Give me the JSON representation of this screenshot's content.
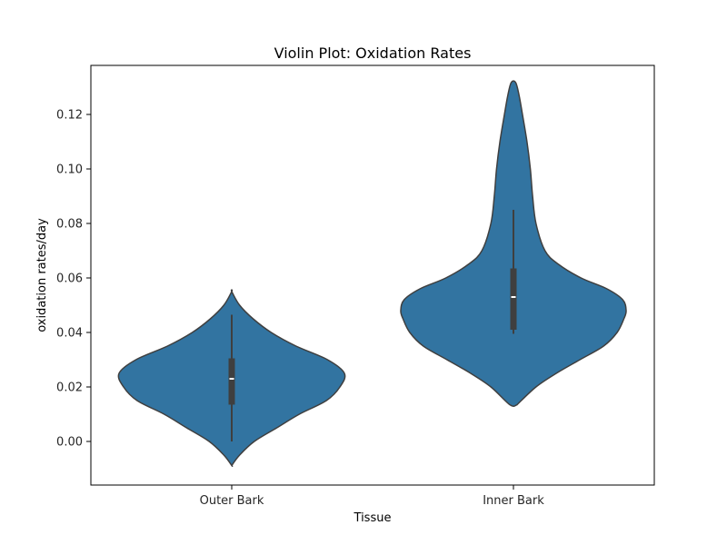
{
  "chart_data": {
    "type": "violin",
    "title": "Violin Plot: Oxidation Rates",
    "xlabel": "Tissue",
    "ylabel": "oxidation rates/day",
    "categories": [
      "Outer Bark",
      "Inner Bark"
    ],
    "ylim": [
      -0.016,
      0.138
    ],
    "yticks": [
      0.0,
      0.02,
      0.04,
      0.06,
      0.08,
      0.1,
      0.12
    ],
    "ytick_labels": [
      "0.00",
      "0.02",
      "0.04",
      "0.06",
      "0.08",
      "0.10",
      "0.12"
    ],
    "grid": false,
    "fill_color": "#3274a1",
    "edge_color": "#3f3f3f",
    "box_color": "#3f3f3f",
    "median_color": "#ffffff",
    "violins": [
      {
        "category": "Outer Bark",
        "min": 0.0,
        "q1": 0.0135,
        "median": 0.023,
        "q3": 0.0305,
        "max": 0.0465,
        "kde_range": [
          -0.0088,
          0.055
        ],
        "density_relative": [
          [
            -0.0088,
            0.0
          ],
          [
            -0.005,
            0.07
          ],
          [
            0.0,
            0.2
          ],
          [
            0.005,
            0.4
          ],
          [
            0.01,
            0.6
          ],
          [
            0.015,
            0.84
          ],
          [
            0.02,
            0.96
          ],
          [
            0.025,
            1.0
          ],
          [
            0.03,
            0.85
          ],
          [
            0.035,
            0.57
          ],
          [
            0.04,
            0.35
          ],
          [
            0.045,
            0.19
          ],
          [
            0.05,
            0.07
          ],
          [
            0.055,
            0.0
          ]
        ]
      },
      {
        "category": "Inner Bark",
        "min": 0.0395,
        "q1": 0.041,
        "median": 0.053,
        "q3": 0.0635,
        "max": 0.085,
        "kde_range": [
          0.0134,
          0.1317
        ],
        "density_relative": [
          [
            0.0134,
            0.03
          ],
          [
            0.02,
            0.2
          ],
          [
            0.025,
            0.38
          ],
          [
            0.03,
            0.59
          ],
          [
            0.035,
            0.8
          ],
          [
            0.04,
            0.92
          ],
          [
            0.045,
            0.98
          ],
          [
            0.048,
            1.0
          ],
          [
            0.052,
            0.97
          ],
          [
            0.056,
            0.83
          ],
          [
            0.06,
            0.6
          ],
          [
            0.065,
            0.4
          ],
          [
            0.07,
            0.28
          ],
          [
            0.08,
            0.2
          ],
          [
            0.09,
            0.17
          ],
          [
            0.1,
            0.15
          ],
          [
            0.11,
            0.12
          ],
          [
            0.12,
            0.08
          ],
          [
            0.127,
            0.05
          ],
          [
            0.1317,
            0.02
          ]
        ]
      }
    ]
  }
}
